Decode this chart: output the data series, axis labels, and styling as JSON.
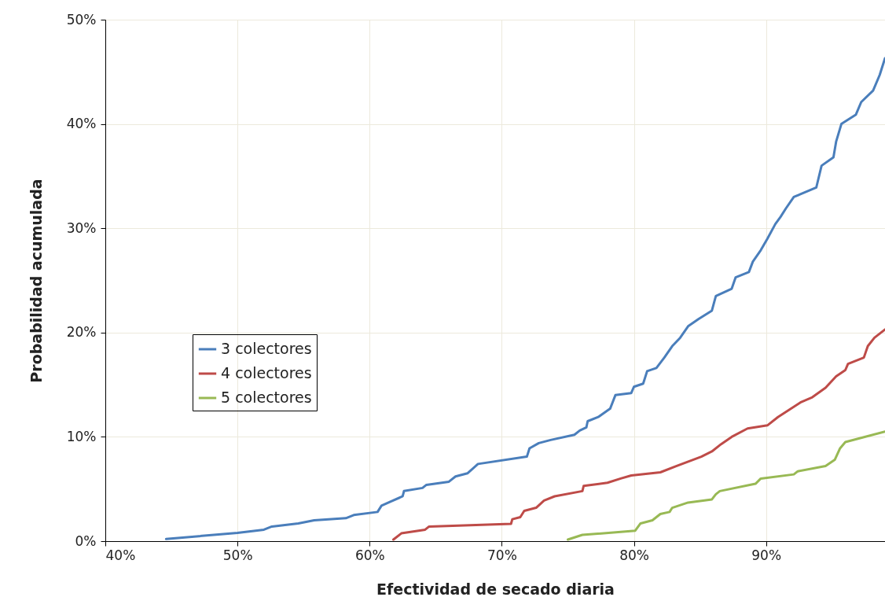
{
  "chart_data": {
    "type": "line",
    "xlabel": "Efectividad de secado diaria",
    "ylabel": "Probabilidad acumulada",
    "xlim": [
      40,
      99
    ],
    "ylim": [
      0,
      50
    ],
    "xticks": [
      {
        "value": 40,
        "label": "40%"
      },
      {
        "value": 50,
        "label": "50%"
      },
      {
        "value": 60,
        "label": "60%"
      },
      {
        "value": 70,
        "label": "70%"
      },
      {
        "value": 80,
        "label": "80%"
      },
      {
        "value": 90,
        "label": "90%"
      }
    ],
    "yticks": [
      {
        "value": 0,
        "label": "0%"
      },
      {
        "value": 10,
        "label": "10%"
      },
      {
        "value": 20,
        "label": "20%"
      },
      {
        "value": 30,
        "label": "30%"
      },
      {
        "value": 40,
        "label": "40%"
      },
      {
        "value": 50,
        "label": "50%"
      }
    ],
    "grid": true,
    "legend": "left",
    "marker": "none",
    "line_style": "solid",
    "series": [
      {
        "name": "3 colectores",
        "color": "#4a7ebb",
        "x": [
          44.6,
          50.0,
          52.0,
          52.6,
          54.6,
          55.8,
          58.2,
          58.8,
          60.6,
          60.9,
          61.6,
          62.5,
          62.6,
          64.0,
          64.3,
          66.0,
          66.5,
          67.4,
          68.2,
          71.9,
          72.1,
          72.8,
          73.7,
          75.5,
          75.9,
          76.4,
          76.5,
          77.3,
          78.2,
          78.6,
          79.8,
          80.0,
          80.7,
          81.0,
          81.7,
          82.3,
          82.9,
          83.5,
          84.1,
          84.9,
          85.9,
          86.2,
          87.4,
          87.7,
          88.7,
          89.0,
          89.6,
          90.1,
          90.7,
          91.1,
          91.5,
          92.1,
          93.8,
          94.2,
          95.1,
          95.3,
          95.7,
          96.8,
          97.2,
          98.1,
          98.6,
          99.0
        ],
        "values": [
          0.2,
          0.8,
          1.1,
          1.4,
          1.7,
          2.0,
          2.2,
          2.5,
          2.8,
          3.4,
          3.8,
          4.3,
          4.8,
          5.1,
          5.4,
          5.7,
          6.2,
          6.5,
          7.4,
          8.1,
          8.9,
          9.4,
          9.7,
          10.2,
          10.6,
          10.9,
          11.5,
          11.9,
          12.7,
          14.0,
          14.2,
          14.8,
          15.1,
          16.3,
          16.6,
          17.6,
          18.7,
          19.5,
          20.6,
          21.3,
          22.1,
          23.5,
          24.2,
          25.3,
          25.8,
          26.8,
          27.9,
          29.0,
          30.4,
          31.1,
          31.9,
          33.0,
          33.9,
          36.0,
          36.8,
          38.3,
          40.0,
          40.9,
          42.1,
          43.2,
          44.7,
          46.3
        ]
      },
      {
        "name": "4 colectores",
        "color": "#be4b48",
        "x": [
          61.8,
          62.4,
          64.2,
          64.5,
          70.7,
          70.8,
          71.4,
          71.7,
          72.6,
          73.2,
          74.0,
          76.1,
          76.2,
          78.0,
          79.0,
          79.8,
          82.0,
          83.2,
          85.1,
          85.9,
          86.6,
          87.4,
          88.6,
          90.1,
          90.9,
          92.6,
          93.5,
          94.5,
          95.3,
          96.0,
          96.2,
          97.4,
          97.7,
          98.2,
          99.0
        ],
        "values": [
          0.15,
          0.75,
          1.1,
          1.4,
          1.66,
          2.1,
          2.3,
          2.9,
          3.2,
          3.9,
          4.3,
          4.8,
          5.3,
          5.6,
          6.0,
          6.3,
          6.6,
          7.2,
          8.1,
          8.6,
          9.3,
          10.0,
          10.8,
          11.1,
          11.9,
          13.3,
          13.8,
          14.7,
          15.8,
          16.4,
          17.0,
          17.6,
          18.7,
          19.5,
          20.3
        ]
      },
      {
        "name": "5 colectores",
        "color": "#98b954",
        "x": [
          75.0,
          76.1,
          80.1,
          80.5,
          81.4,
          82.0,
          82.7,
          82.9,
          84.1,
          85.9,
          86.2,
          86.5,
          89.2,
          89.6,
          92.1,
          92.4,
          94.5,
          95.2,
          95.6,
          96.0,
          99.0
        ],
        "values": [
          0.15,
          0.6,
          1.0,
          1.7,
          2.0,
          2.6,
          2.8,
          3.2,
          3.7,
          4.0,
          4.5,
          4.8,
          5.5,
          6.0,
          6.4,
          6.7,
          7.2,
          7.8,
          8.9,
          9.5,
          10.5
        ]
      }
    ]
  }
}
